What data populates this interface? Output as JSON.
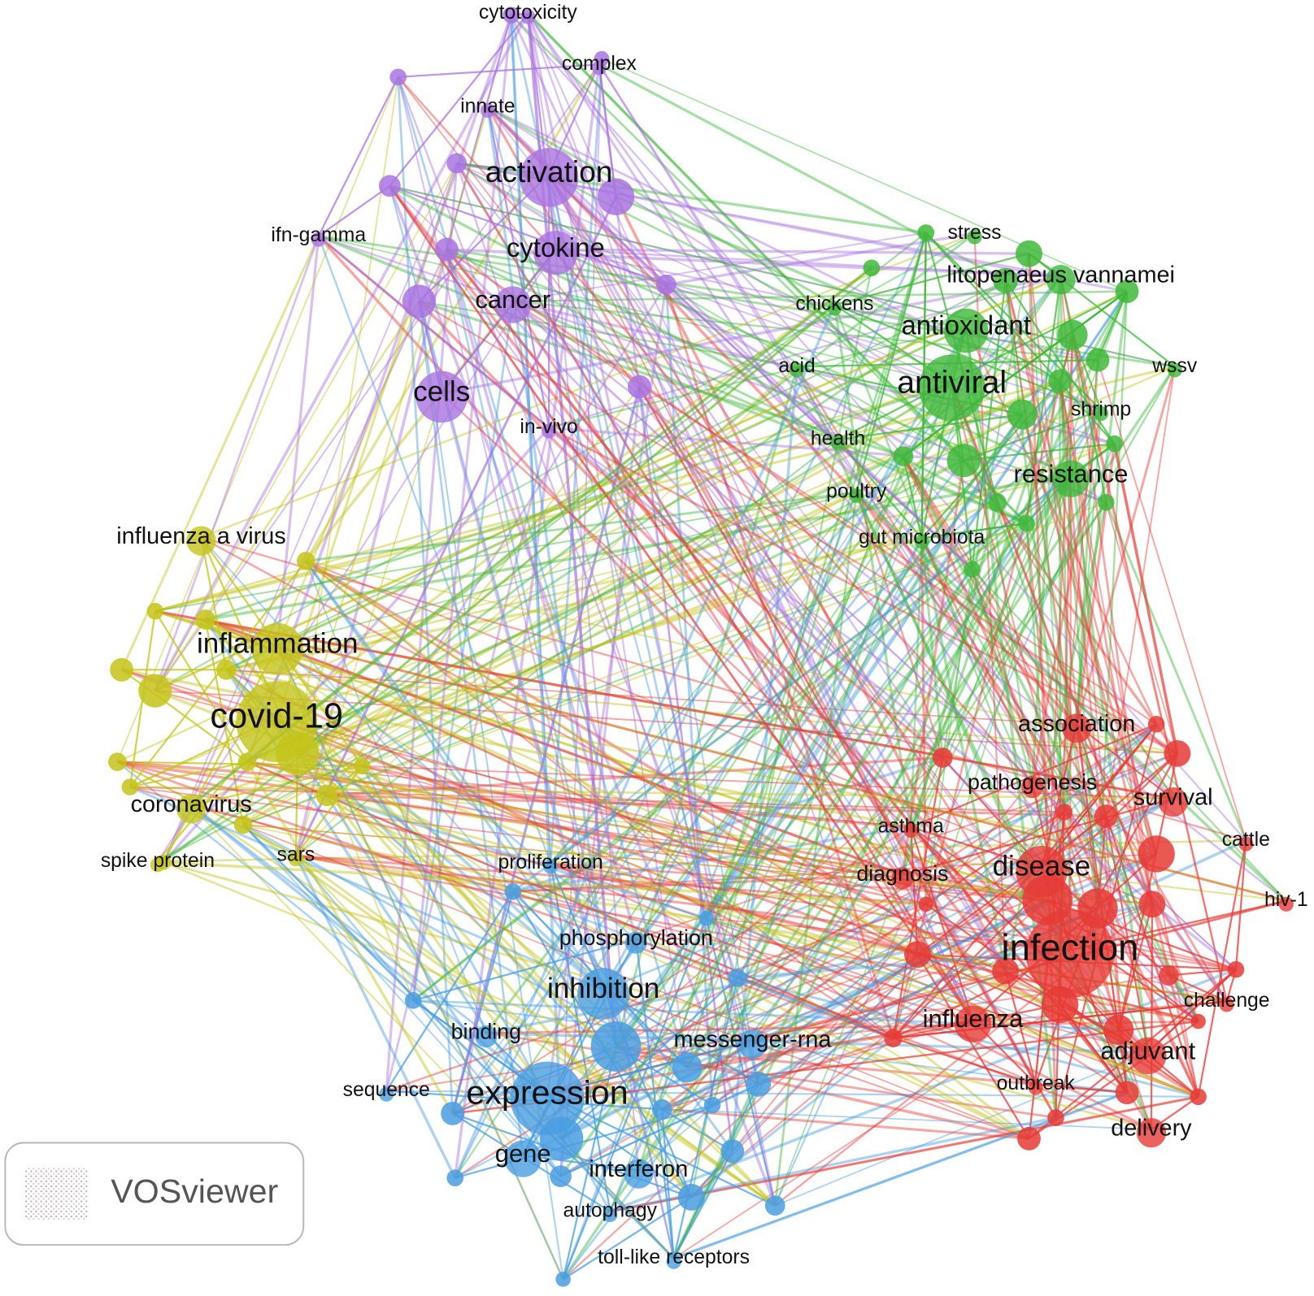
{
  "nodes": [
    {
      "label": "cytotoxicity"
    },
    {
      "label": "complex"
    },
    {
      "label": "innate"
    },
    {
      "label": "activation"
    },
    {
      "label": "ifn-gamma"
    },
    {
      "label": "cytokine"
    },
    {
      "label": "cancer"
    },
    {
      "label": "cells"
    },
    {
      "label": "in-vivo"
    },
    {
      "label": "stress"
    },
    {
      "label": "litopenaeus vannamei"
    },
    {
      "label": "chickens"
    },
    {
      "label": "antioxidant"
    },
    {
      "label": "acid"
    },
    {
      "label": "antiviral"
    },
    {
      "label": "wssv"
    },
    {
      "label": "shrimp"
    },
    {
      "label": "health"
    },
    {
      "label": "resistance"
    },
    {
      "label": "poultry"
    },
    {
      "label": "gut microbiota"
    },
    {
      "label": "influenza a virus"
    },
    {
      "label": "inflammation"
    },
    {
      "label": "covid-19"
    },
    {
      "label": "coronavirus"
    },
    {
      "label": "spike protein"
    },
    {
      "label": "sars"
    },
    {
      "label": "association"
    },
    {
      "label": "pathogenesis"
    },
    {
      "label": "survival"
    },
    {
      "label": "asthma"
    },
    {
      "label": "cattle"
    },
    {
      "label": "disease"
    },
    {
      "label": "diagnosis"
    },
    {
      "label": "hiv-1"
    },
    {
      "label": "infection"
    },
    {
      "label": "challenge"
    },
    {
      "label": "influenza"
    },
    {
      "label": "adjuvant"
    },
    {
      "label": "outbreak"
    },
    {
      "label": "delivery"
    },
    {
      "label": "proliferation"
    },
    {
      "label": "phosphorylation"
    },
    {
      "label": "inhibition"
    },
    {
      "label": "binding"
    },
    {
      "label": "messenger-rna"
    },
    {
      "label": "sequence"
    },
    {
      "label": "expression"
    },
    {
      "label": "gene"
    },
    {
      "label": "interferon"
    },
    {
      "label": "autophagy"
    },
    {
      "label": "toll-like receptors"
    }
  ],
  "logo": {
    "text": "VOSviewer"
  }
}
